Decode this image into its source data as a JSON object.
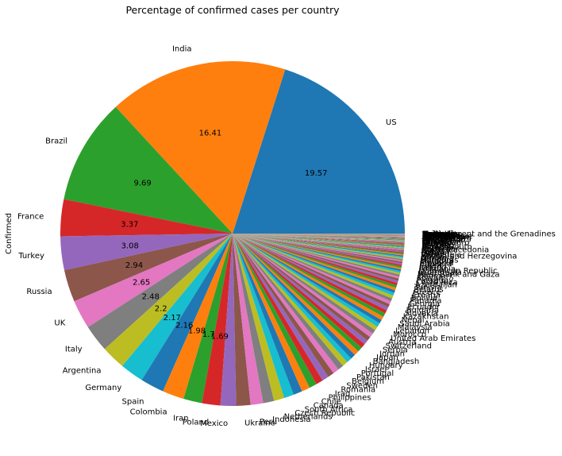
{
  "chart_data": {
    "type": "pie",
    "title": "Percentage of confirmed cases per country",
    "ylabel": "Confirmed",
    "value_unit": "percent",
    "start_angle_deg": 0,
    "direction": "counterclockwise",
    "slices": [
      {
        "label": "US",
        "value": 19.57,
        "color": "#1f77b4",
        "show_value": true
      },
      {
        "label": "India",
        "value": 16.41,
        "color": "#ff7f0e",
        "show_value": true
      },
      {
        "label": "Brazil",
        "value": 9.69,
        "color": "#2ca02c",
        "show_value": true
      },
      {
        "label": "France",
        "value": 3.37,
        "color": "#d62728",
        "show_value": true
      },
      {
        "label": "Turkey",
        "value": 3.08,
        "color": "#9467bd",
        "show_value": true
      },
      {
        "label": "Russia",
        "value": 2.94,
        "color": "#8c564b",
        "show_value": true
      },
      {
        "label": "UK",
        "value": 2.65,
        "color": "#e377c2",
        "show_value": true
      },
      {
        "label": "Italy",
        "value": 2.48,
        "color": "#7f7f7f",
        "show_value": true
      },
      {
        "label": "Argentina",
        "value": 2.2,
        "color": "#bcbd22",
        "show_value": true
      },
      {
        "label": "Germany",
        "value": 2.17,
        "color": "#17becf",
        "show_value": true
      },
      {
        "label": "Spain",
        "value": 2.16,
        "color": "#1f77b4",
        "show_value": true
      },
      {
        "label": "Colombia",
        "value": 1.98,
        "color": "#ff7f0e",
        "show_value": true
      },
      {
        "label": "Iran",
        "value": 1.7,
        "color": "#2ca02c",
        "show_value": true
      },
      {
        "label": "Poland",
        "value": 1.69,
        "color": "#d62728",
        "show_value": true
      },
      {
        "label": "Mexico",
        "value": 1.42,
        "color": "#9467bd",
        "show_value": false
      },
      {
        "label": "Ukraine",
        "value": 1.31,
        "color": "#8c564b",
        "show_value": false
      },
      {
        "label": "Peru",
        "value": 1.15,
        "color": "#e377c2",
        "show_value": false
      },
      {
        "label": "Indonesia",
        "value": 1.0,
        "color": "#7f7f7f",
        "show_value": false
      },
      {
        "label": "Netherlands",
        "value": 0.95,
        "color": "#bcbd22",
        "show_value": false
      },
      {
        "label": "Czech Republic",
        "value": 0.9,
        "color": "#17becf",
        "show_value": false
      },
      {
        "label": "South Africa",
        "value": 0.82,
        "color": "#1f77b4",
        "show_value": false
      },
      {
        "label": "Canada",
        "value": 0.75,
        "color": "#ff7f0e",
        "show_value": false
      },
      {
        "label": "Chile",
        "value": 0.7,
        "color": "#2ca02c",
        "show_value": false
      },
      {
        "label": "Philippines",
        "value": 0.65,
        "color": "#d62728",
        "show_value": false
      },
      {
        "label": "Iraq",
        "value": 0.6,
        "color": "#9467bd",
        "show_value": false
      },
      {
        "label": "Romania",
        "value": 0.58,
        "color": "#8c564b",
        "show_value": false
      },
      {
        "label": "Sweden",
        "value": 0.55,
        "color": "#e377c2",
        "show_value": false
      },
      {
        "label": "Belgium",
        "value": 0.53,
        "color": "#7f7f7f",
        "show_value": false
      },
      {
        "label": "Pakistan",
        "value": 0.5,
        "color": "#bcbd22",
        "show_value": false
      },
      {
        "label": "Portugal",
        "value": 0.48,
        "color": "#17becf",
        "show_value": false
      },
      {
        "label": "Israel",
        "value": 0.47,
        "color": "#1f77b4",
        "show_value": false
      },
      {
        "label": "Hungary",
        "value": 0.45,
        "color": "#ff7f0e",
        "show_value": false
      },
      {
        "label": "Bangladesh",
        "value": 0.44,
        "color": "#2ca02c",
        "show_value": false
      },
      {
        "label": "Japan",
        "value": 0.42,
        "color": "#d62728",
        "show_value": false
      },
      {
        "label": "Jordan",
        "value": 0.41,
        "color": "#9467bd",
        "show_value": false
      },
      {
        "label": "Serbia",
        "value": 0.4,
        "color": "#8c564b",
        "show_value": false
      },
      {
        "label": "Switzerland",
        "value": 0.39,
        "color": "#e377c2",
        "show_value": false
      },
      {
        "label": "Austria",
        "value": 0.38,
        "color": "#7f7f7f",
        "show_value": false
      },
      {
        "label": "United Arab Emirates",
        "value": 0.37,
        "color": "#bcbd22",
        "show_value": false
      },
      {
        "label": "Morocco",
        "value": 0.36,
        "color": "#17becf",
        "show_value": false
      },
      {
        "label": "Lebanon",
        "value": 0.35,
        "color": "#1f77b4",
        "show_value": false
      },
      {
        "label": "Malaysia",
        "value": 0.34,
        "color": "#ff7f0e",
        "show_value": false
      },
      {
        "label": "Saudi Arabia",
        "value": 0.33,
        "color": "#2ca02c",
        "show_value": false
      },
      {
        "label": "Nepal",
        "value": 0.32,
        "color": "#d62728",
        "show_value": false
      },
      {
        "label": "Kazakhstan",
        "value": 0.31,
        "color": "#9467bd",
        "show_value": false
      },
      {
        "label": "Slovakia",
        "value": 0.3,
        "color": "#8c564b",
        "show_value": false
      },
      {
        "label": "Bulgaria",
        "value": 0.29,
        "color": "#e377c2",
        "show_value": false
      },
      {
        "label": "Ecuador",
        "value": 0.28,
        "color": "#7f7f7f",
        "show_value": false
      },
      {
        "label": "Georgia",
        "value": 0.27,
        "color": "#bcbd22",
        "show_value": false
      },
      {
        "label": "Panama",
        "value": 0.26,
        "color": "#17becf",
        "show_value": false
      },
      {
        "label": "Bolivia",
        "value": 0.25,
        "color": "#1f77b4",
        "show_value": false
      },
      {
        "label": "Croatia",
        "value": 0.24,
        "color": "#ff7f0e",
        "show_value": false
      },
      {
        "label": "Greece",
        "value": 0.23,
        "color": "#2ca02c",
        "show_value": false
      },
      {
        "label": "Belarus",
        "value": 0.22,
        "color": "#d62728",
        "show_value": false
      },
      {
        "label": "Tunisia",
        "value": 0.21,
        "color": "#9467bd",
        "show_value": false
      },
      {
        "label": "Azerbaijan",
        "value": 0.2,
        "color": "#8c564b",
        "show_value": false
      },
      {
        "label": "Costa Rica",
        "value": 0.19,
        "color": "#e377c2",
        "show_value": false
      },
      {
        "label": "Paraguay",
        "value": 0.18,
        "color": "#7f7f7f",
        "show_value": false
      },
      {
        "label": "Kuwait",
        "value": 0.17,
        "color": "#bcbd22",
        "show_value": false
      },
      {
        "label": "Denmark",
        "value": 0.16,
        "color": "#17becf",
        "show_value": false
      },
      {
        "label": "West Bank and Gaza",
        "value": 0.155,
        "color": "#1f77b4",
        "show_value": false
      },
      {
        "label": "Guatemala",
        "value": 0.15,
        "color": "#ff7f0e",
        "show_value": false
      },
      {
        "label": "Dominican Republic",
        "value": 0.145,
        "color": "#2ca02c",
        "show_value": false
      },
      {
        "label": "Lithuania",
        "value": 0.14,
        "color": "#d62728",
        "show_value": false
      },
      {
        "label": "Ireland",
        "value": 0.135,
        "color": "#9467bd",
        "show_value": false
      },
      {
        "label": "Egypt",
        "value": 0.13,
        "color": "#8c564b",
        "show_value": false
      },
      {
        "label": "Ethiopia",
        "value": 0.125,
        "color": "#e377c2",
        "show_value": false
      },
      {
        "label": "Slovenia",
        "value": 0.12,
        "color": "#7f7f7f",
        "show_value": false
      },
      {
        "label": "Moldova",
        "value": 0.115,
        "color": "#bcbd22",
        "show_value": false
      },
      {
        "label": "Honduras",
        "value": 0.11,
        "color": "#17becf",
        "show_value": false
      },
      {
        "label": "Armenia",
        "value": 0.105,
        "color": "#1f77b4",
        "show_value": false
      },
      {
        "label": "Oman",
        "value": 0.1,
        "color": "#ff7f0e",
        "show_value": false
      },
      {
        "label": "Bosnia and Herzegovina",
        "value": 0.097,
        "color": "#2ca02c",
        "show_value": false
      },
      {
        "label": "Venezuela",
        "value": 0.094,
        "color": "#d62728",
        "show_value": false
      },
      {
        "label": "Libya",
        "value": 0.091,
        "color": "#9467bd",
        "show_value": false
      },
      {
        "label": "Bahrain",
        "value": 0.088,
        "color": "#8c564b",
        "show_value": false
      },
      {
        "label": "Kenya",
        "value": 0.085,
        "color": "#e377c2",
        "show_value": false
      },
      {
        "label": "Nigeria",
        "value": 0.082,
        "color": "#7f7f7f",
        "show_value": false
      },
      {
        "label": "North Macedonia",
        "value": 0.079,
        "color": "#bcbd22",
        "show_value": false
      },
      {
        "label": "Myanmar",
        "value": 0.076,
        "color": "#17becf",
        "show_value": false
      },
      {
        "label": "Algeria",
        "value": 0.073,
        "color": "#1f77b4",
        "show_value": false
      },
      {
        "label": "Korea, South",
        "value": 0.07,
        "color": "#ff7f0e",
        "show_value": false
      },
      {
        "label": "Albania",
        "value": 0.067,
        "color": "#2ca02c",
        "show_value": false
      },
      {
        "label": "Estonia",
        "value": 0.064,
        "color": "#d62728",
        "show_value": false
      },
      {
        "label": "Uruguay",
        "value": 0.061,
        "color": "#9467bd",
        "show_value": false
      },
      {
        "label": "Norway",
        "value": 0.058,
        "color": "#8c564b",
        "show_value": false
      },
      {
        "label": "Latvia",
        "value": 0.055,
        "color": "#e377c2",
        "show_value": false
      },
      {
        "label": "Montenegro",
        "value": 0.052,
        "color": "#7f7f7f",
        "show_value": false
      },
      {
        "label": "Sri Lanka",
        "value": 0.05,
        "color": "#bcbd22",
        "show_value": false
      },
      {
        "label": "Ghana",
        "value": 0.048,
        "color": "#17becf",
        "show_value": false
      },
      {
        "label": "China",
        "value": 0.046,
        "color": "#1f77b4",
        "show_value": false
      },
      {
        "label": "Kyrgyzstan",
        "value": 0.044,
        "color": "#ff7f0e",
        "show_value": false
      },
      {
        "label": "Finland",
        "value": 0.042,
        "color": "#2ca02c",
        "show_value": false
      },
      {
        "label": "Zambia",
        "value": 0.04,
        "color": "#d62728",
        "show_value": false
      },
      {
        "label": "Uzbekistan",
        "value": 0.038,
        "color": "#9467bd",
        "show_value": false
      },
      {
        "label": "El Salvador",
        "value": 0.036,
        "color": "#8c564b",
        "show_value": false
      },
      {
        "label": "Luxembourg",
        "value": 0.034,
        "color": "#e377c2",
        "show_value": false
      },
      {
        "label": "Cyprus",
        "value": 0.032,
        "color": "#7f7f7f",
        "show_value": false
      },
      {
        "label": "Singapore",
        "value": 0.03,
        "color": "#bcbd22",
        "show_value": false
      },
      {
        "label": "Afghanistan",
        "value": 0.028,
        "color": "#17becf",
        "show_value": false
      },
      {
        "label": "Mozambique",
        "value": 0.026,
        "color": "#1f77b4",
        "show_value": false
      },
      {
        "label": "Namibia",
        "value": 0.024,
        "color": "#ff7f0e",
        "show_value": false
      },
      {
        "label": "Uganda",
        "value": 0.022,
        "color": "#2ca02c",
        "show_value": false
      },
      {
        "label": "Botswana",
        "value": 0.02,
        "color": "#d62728",
        "show_value": false
      },
      {
        "label": "Cuba",
        "value": 0.018,
        "color": "#9467bd",
        "show_value": false
      },
      {
        "label": "Jamaica",
        "value": 0.016,
        "color": "#8c564b",
        "show_value": false
      },
      {
        "label": "Australia",
        "value": 0.014,
        "color": "#e377c2",
        "show_value": false
      },
      {
        "label": "Cameroon",
        "value": 0.012,
        "color": "#7f7f7f",
        "show_value": false
      },
      {
        "label": "Malta",
        "value": 0.011,
        "color": "#bcbd22",
        "show_value": false
      },
      {
        "label": "Thailand",
        "value": 0.01,
        "color": "#17becf",
        "show_value": false
      },
      {
        "label": "Senegal",
        "value": 0.009,
        "color": "#1f77b4",
        "show_value": false
      },
      {
        "label": "Rwanda",
        "value": 0.008,
        "color": "#ff7f0e",
        "show_value": false
      },
      {
        "label": "Malawi",
        "value": 0.007,
        "color": "#2ca02c",
        "show_value": false
      },
      {
        "label": "Iceland",
        "value": 0.006,
        "color": "#d62728",
        "show_value": false
      },
      {
        "label": "Haiti",
        "value": 0.005,
        "color": "#9467bd",
        "show_value": false
      },
      {
        "label": "Gabon",
        "value": 0.004,
        "color": "#8c564b",
        "show_value": false
      },
      {
        "label": "Mongolia",
        "value": 0.004,
        "color": "#e377c2",
        "show_value": false
      },
      {
        "label": "Barbados",
        "value": 0.003,
        "color": "#7f7f7f",
        "show_value": false
      },
      {
        "label": "Saint Vincent and the Grenadines",
        "value": 0.002,
        "color": "#bcbd22",
        "show_value": false
      }
    ]
  }
}
